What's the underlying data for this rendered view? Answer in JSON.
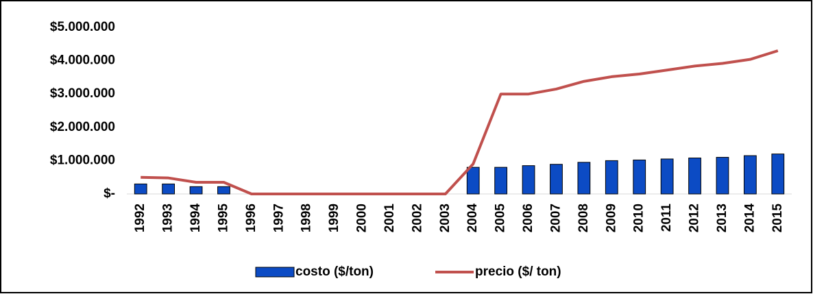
{
  "chart_data": {
    "type": "bar-line",
    "categories": [
      "1992",
      "1993",
      "1994",
      "1995",
      "1996",
      "1997",
      "1998",
      "1999",
      "2000",
      "2001",
      "2002",
      "2003",
      "2004",
      "2005",
      "2006",
      "2007",
      "2008",
      "2009",
      "2010",
      "2011",
      "2012",
      "2013",
      "2014",
      "2015"
    ],
    "series": [
      {
        "name": "costo ($/ton)",
        "type": "bar",
        "color": "#0c4bc4",
        "values": [
          300000,
          300000,
          220000,
          220000,
          0,
          0,
          0,
          0,
          0,
          0,
          0,
          0,
          800000,
          800000,
          850000,
          890000,
          950000,
          1000000,
          1020000,
          1050000,
          1080000,
          1100000,
          1150000,
          1200000
        ]
      },
      {
        "name": "precio ($/ ton)",
        "type": "line",
        "color": "#c0504d",
        "values": [
          500000,
          480000,
          350000,
          350000,
          0,
          0,
          0,
          0,
          0,
          0,
          0,
          0,
          900000,
          3000000,
          3000000,
          3150000,
          3380000,
          3520000,
          3600000,
          3720000,
          3840000,
          3920000,
          4040000,
          4300000
        ]
      }
    ],
    "ylim": [
      0,
      5000000
    ],
    "yticks": [
      {
        "value": 0,
        "label": "$-"
      },
      {
        "value": 1000000,
        "label": "$1.000.000"
      },
      {
        "value": 2000000,
        "label": "$2.000.000"
      },
      {
        "value": 3000000,
        "label": "$3.000.000"
      },
      {
        "value": 4000000,
        "label": "$4.000.000"
      },
      {
        "value": 5000000,
        "label": "$5.000.000"
      }
    ],
    "legend": "bottom"
  }
}
